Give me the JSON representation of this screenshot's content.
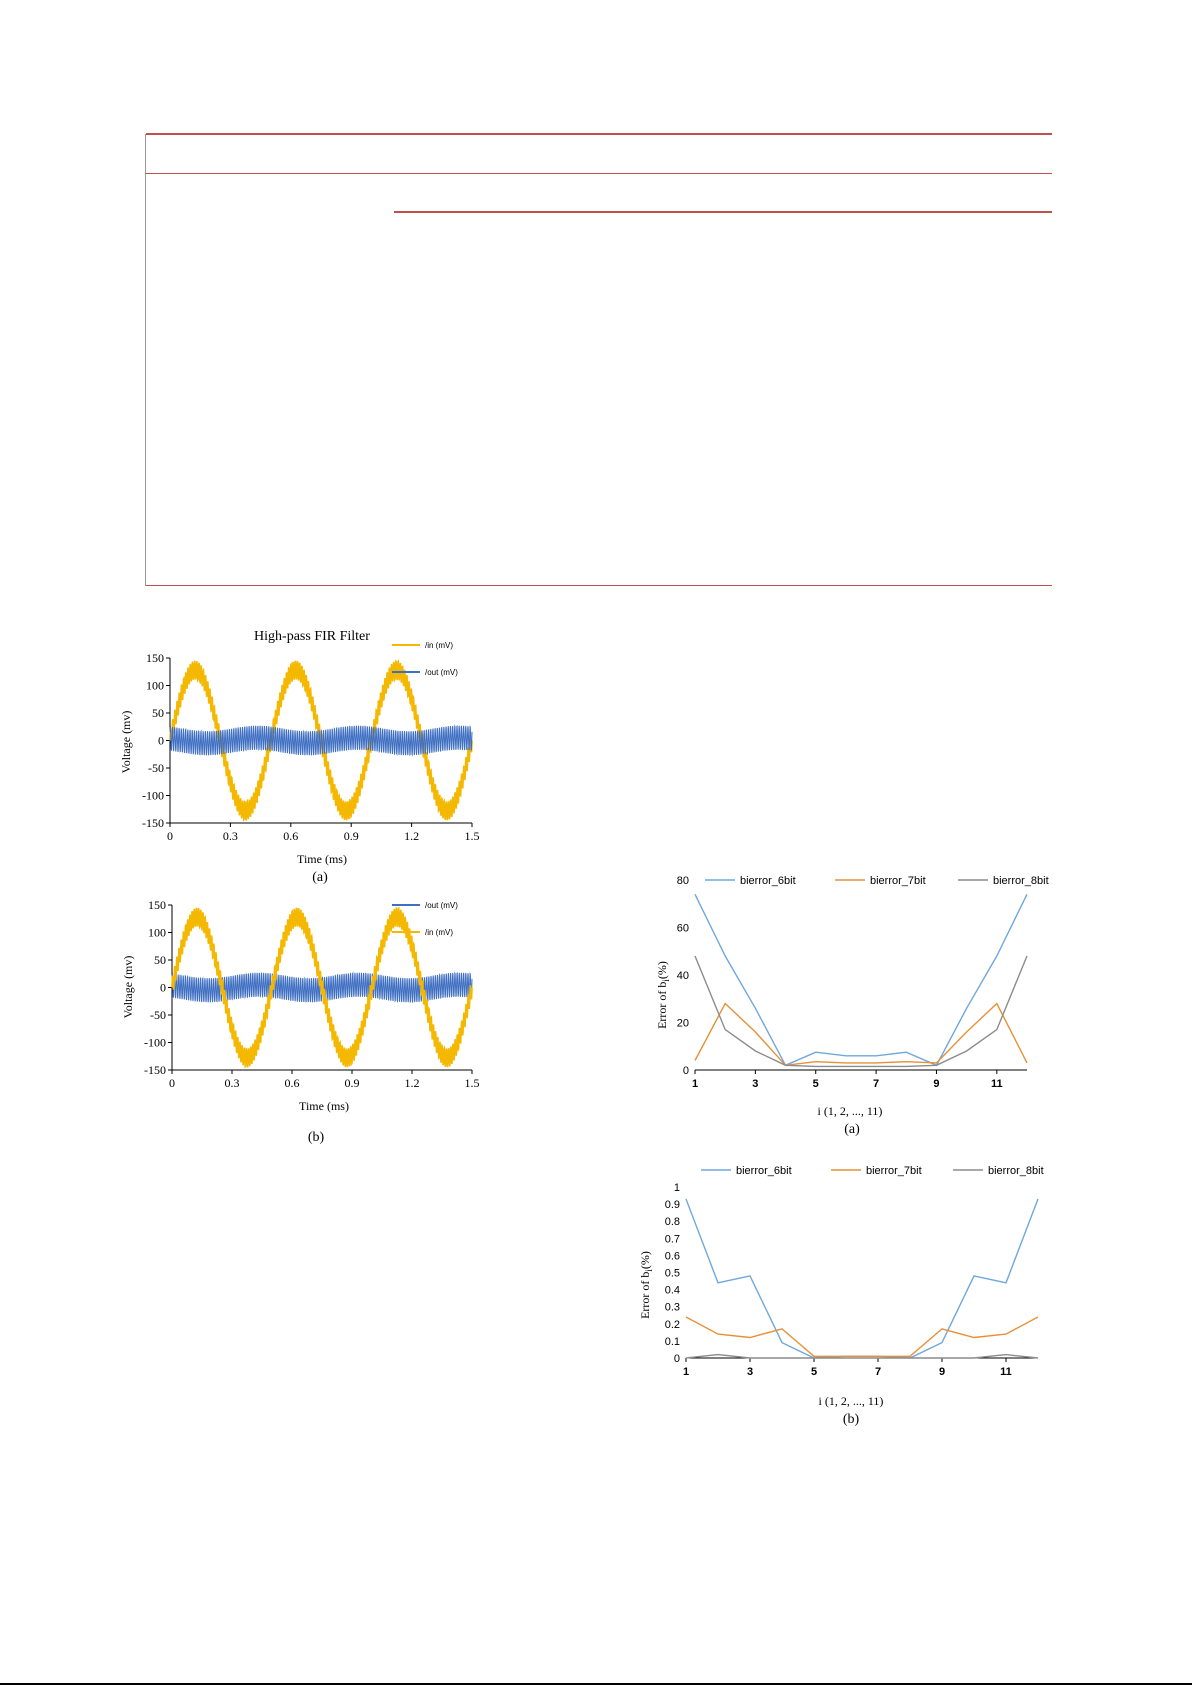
{
  "colors": {
    "rule_red": "#c0504d",
    "gold": "#f5b800",
    "blue_signal": "#3f6fc2",
    "series_6bit": "#6fa8dc",
    "series_7bit": "#e69138",
    "series_8bit": "#8c8c8c"
  },
  "chart_data": [
    {
      "type": "line",
      "title": "High-pass FIR Filter",
      "xlabel": "Time (ms)",
      "ylabel": "Voltage (mv)",
      "xlim": [
        0,
        1.5
      ],
      "ylim": [
        -150,
        150
      ],
      "xticks": [
        "0",
        "0.3",
        "0.6",
        "0.9",
        "1.2",
        "1.5"
      ],
      "yticks": [
        "150",
        "100",
        "50",
        "0",
        "-50",
        "-100",
        "-150"
      ],
      "legend": [
        "/in (mV)",
        "/out (mV)"
      ],
      "legend_position": "top-right",
      "series": [
        {
          "name": "/in (mV)",
          "description_points": {
            "x": [
              0,
              0.125,
              0.375,
              0.625,
              0.875,
              1.125,
              1.375,
              1.5
            ],
            "y": [
              0,
              130,
              -130,
              130,
              -130,
              130,
              -130,
              0
            ]
          }
        },
        {
          "name": "/out (mV)",
          "description_points": {
            "x": [
              0,
              0.5,
              1.0,
              1.5
            ],
            "y": [
              0,
              0,
              0,
              0
            ]
          }
        }
      ],
      "caption": "(a)"
    },
    {
      "type": "line",
      "title": "",
      "xlabel": "Time (ms)",
      "ylabel": "Voltage (mv)",
      "xlim": [
        0,
        1.5
      ],
      "ylim": [
        -150,
        150
      ],
      "xticks": [
        "0",
        "0.3",
        "0.6",
        "0.9",
        "1.2",
        "1.5"
      ],
      "yticks": [
        "150",
        "100",
        "50",
        "0",
        "-50",
        "-100",
        "-150"
      ],
      "legend": [
        "/out (mV)",
        "/in (mV)"
      ],
      "legend_position": "top-right",
      "series": [
        {
          "name": "/out (mV)",
          "description_points": {
            "x": [
              0,
              0.5,
              1.0,
              1.5
            ],
            "y": [
              0,
              0,
              0,
              0
            ]
          }
        },
        {
          "name": "/in (mV)",
          "description_points": {
            "x": [
              0,
              0.125,
              0.375,
              0.625,
              0.875,
              1.125,
              1.375,
              1.5
            ],
            "y": [
              0,
              130,
              -130,
              130,
              -130,
              130,
              -130,
              0
            ]
          }
        }
      ],
      "caption": "(b)"
    },
    {
      "type": "line",
      "title": "",
      "xlabel": "i (1, 2, ..., 11)",
      "ylabel": "Error of b",
      "ylabel_sub": "i",
      "ylabel_suffix": "(%)",
      "xlim": [
        1,
        12
      ],
      "ylim": [
        0,
        80
      ],
      "xticks": [
        "1",
        "3",
        "5",
        "7",
        "9",
        "11"
      ],
      "yticks": [
        "80",
        "60",
        "40",
        "20",
        "0"
      ],
      "legend_position": "top",
      "categories": [
        1,
        2,
        3,
        4,
        5,
        6,
        7,
        8,
        9,
        10,
        11,
        12
      ],
      "series": [
        {
          "name": "bierror_6bit",
          "values": [
            74,
            48,
            26,
            2,
            7.5,
            6,
            6,
            7.5,
            2,
            26,
            48,
            74
          ]
        },
        {
          "name": "bierror_7bit",
          "values": [
            4,
            28,
            16,
            2,
            3.5,
            3,
            3,
            3.5,
            3,
            16,
            28,
            3
          ]
        },
        {
          "name": "bierror_8bit",
          "values": [
            48,
            17,
            8,
            2,
            1.5,
            1.5,
            1.5,
            1.5,
            2,
            8,
            17,
            48
          ]
        }
      ],
      "caption": "(a)"
    },
    {
      "type": "line",
      "title": "",
      "xlabel": "i (1, 2, ..., 11)",
      "ylabel": "Error of b",
      "ylabel_sub": "i",
      "ylabel_suffix": "(%)",
      "xlim": [
        1,
        12
      ],
      "ylim": [
        0,
        1
      ],
      "xticks": [
        "1",
        "3",
        "5",
        "7",
        "9",
        "11"
      ],
      "yticks": [
        "1",
        "0.9",
        "0.8",
        "0.7",
        "0.6",
        "0.5",
        "0.4",
        "0.3",
        "0.2",
        "0.1",
        "0"
      ],
      "legend_position": "top",
      "categories": [
        1,
        2,
        3,
        4,
        5,
        6,
        7,
        8,
        9,
        10,
        11,
        12
      ],
      "series": [
        {
          "name": "bierror_6bit",
          "values": [
            0.93,
            0.44,
            0.48,
            0.09,
            0.0,
            0.01,
            0.01,
            0.0,
            0.09,
            0.48,
            0.44,
            0.93
          ]
        },
        {
          "name": "bierror_7bit",
          "values": [
            0.24,
            0.14,
            0.12,
            0.17,
            0.01,
            0.01,
            0.01,
            0.01,
            0.17,
            0.12,
            0.14,
            0.24
          ]
        },
        {
          "name": "bierror_8bit",
          "values": [
            0.0,
            0.02,
            0.0,
            0.0,
            0.0,
            0.0,
            0.0,
            0.0,
            0.0,
            0.0,
            0.02,
            0.0
          ]
        }
      ],
      "caption": "(b)"
    }
  ]
}
